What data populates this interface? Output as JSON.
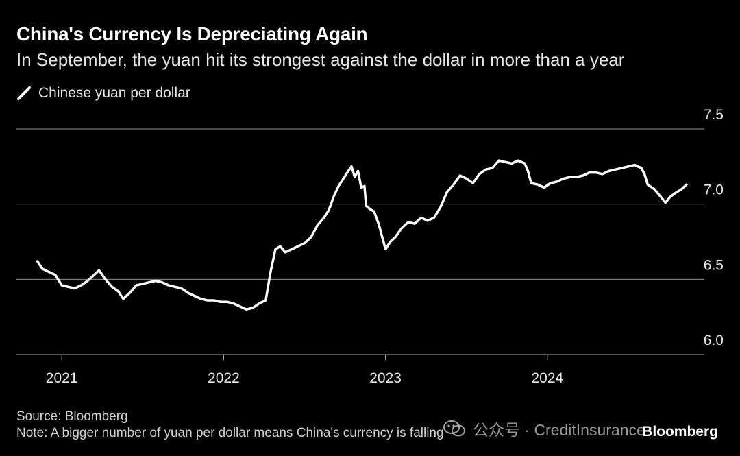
{
  "header": {
    "title": "China's Currency Is Depreciating Again",
    "subtitle": "In September, the yuan hit its strongest against the dollar in more than a year"
  },
  "legend": {
    "label": "Chinese yuan per dollar"
  },
  "footer": {
    "source": "Source: Bloomberg",
    "note": "Note: A bigger number of yuan per dollar means China's currency is falling"
  },
  "watermark": {
    "text": "公众号 · CreditInsurance",
    "icon": "wechat-icon"
  },
  "brand": {
    "name": "Bloomberg"
  },
  "colors": {
    "background": "#000000",
    "line": "#ffffff",
    "grid": "#8c8c8c",
    "text": "#ffffff"
  },
  "chart_data": {
    "type": "line",
    "title": "China's Currency Is Depreciating Again",
    "subtitle": "In September, the yuan hit its strongest against the dollar in more than a year",
    "xlabel": "",
    "ylabel": "",
    "ylim": [
      6.0,
      7.5
    ],
    "yticks": [
      "6.0",
      "6.5",
      "7.0",
      "7.5"
    ],
    "xticks": [
      "2021",
      "2022",
      "2023",
      "2024"
    ],
    "xlim": [
      2020.72,
      2024.97
    ],
    "grid": true,
    "legend_position": "top-left",
    "series": [
      {
        "name": "Chinese yuan per dollar",
        "points": [
          [
            2020.85,
            6.62
          ],
          [
            2020.88,
            6.57
          ],
          [
            2020.92,
            6.55
          ],
          [
            2020.96,
            6.53
          ],
          [
            2021.0,
            6.46
          ],
          [
            2021.04,
            6.45
          ],
          [
            2021.08,
            6.44
          ],
          [
            2021.12,
            6.46
          ],
          [
            2021.16,
            6.49
          ],
          [
            2021.2,
            6.53
          ],
          [
            2021.23,
            6.56
          ],
          [
            2021.27,
            6.5
          ],
          [
            2021.31,
            6.45
          ],
          [
            2021.35,
            6.42
          ],
          [
            2021.38,
            6.37
          ],
          [
            2021.42,
            6.41
          ],
          [
            2021.46,
            6.46
          ],
          [
            2021.5,
            6.47
          ],
          [
            2021.54,
            6.48
          ],
          [
            2021.58,
            6.49
          ],
          [
            2021.62,
            6.48
          ],
          [
            2021.66,
            6.46
          ],
          [
            2021.7,
            6.45
          ],
          [
            2021.74,
            6.44
          ],
          [
            2021.78,
            6.41
          ],
          [
            2021.82,
            6.39
          ],
          [
            2021.86,
            6.37
          ],
          [
            2021.9,
            6.36
          ],
          [
            2021.94,
            6.36
          ],
          [
            2021.98,
            6.35
          ],
          [
            2022.02,
            6.35
          ],
          [
            2022.06,
            6.34
          ],
          [
            2022.1,
            6.32
          ],
          [
            2022.14,
            6.3
          ],
          [
            2022.18,
            6.31
          ],
          [
            2022.22,
            6.34
          ],
          [
            2022.26,
            6.36
          ],
          [
            2022.29,
            6.55
          ],
          [
            2022.32,
            6.7
          ],
          [
            2022.35,
            6.72
          ],
          [
            2022.38,
            6.68
          ],
          [
            2022.42,
            6.7
          ],
          [
            2022.46,
            6.72
          ],
          [
            2022.5,
            6.74
          ],
          [
            2022.54,
            6.78
          ],
          [
            2022.58,
            6.86
          ],
          [
            2022.62,
            6.91
          ],
          [
            2022.65,
            6.96
          ],
          [
            2022.68,
            7.05
          ],
          [
            2022.71,
            7.12
          ],
          [
            2022.74,
            7.17
          ],
          [
            2022.77,
            7.22
          ],
          [
            2022.79,
            7.25
          ],
          [
            2022.81,
            7.18
          ],
          [
            2022.83,
            7.22
          ],
          [
            2022.85,
            7.11
          ],
          [
            2022.87,
            7.12
          ],
          [
            2022.88,
            6.99
          ],
          [
            2022.9,
            6.97
          ],
          [
            2022.93,
            6.95
          ],
          [
            2022.96,
            6.86
          ],
          [
            2023.0,
            6.7
          ],
          [
            2023.03,
            6.75
          ],
          [
            2023.06,
            6.78
          ],
          [
            2023.1,
            6.84
          ],
          [
            2023.14,
            6.88
          ],
          [
            2023.18,
            6.87
          ],
          [
            2023.22,
            6.91
          ],
          [
            2023.26,
            6.89
          ],
          [
            2023.3,
            6.91
          ],
          [
            2023.34,
            6.98
          ],
          [
            2023.38,
            7.08
          ],
          [
            2023.42,
            7.13
          ],
          [
            2023.46,
            7.19
          ],
          [
            2023.5,
            7.17
          ],
          [
            2023.54,
            7.14
          ],
          [
            2023.58,
            7.2
          ],
          [
            2023.62,
            7.23
          ],
          [
            2023.66,
            7.24
          ],
          [
            2023.7,
            7.29
          ],
          [
            2023.74,
            7.28
          ],
          [
            2023.78,
            7.27
          ],
          [
            2023.82,
            7.29
          ],
          [
            2023.86,
            7.27
          ],
          [
            2023.88,
            7.22
          ],
          [
            2023.9,
            7.14
          ],
          [
            2023.94,
            7.13
          ],
          [
            2023.98,
            7.11
          ],
          [
            2024.02,
            7.14
          ],
          [
            2024.06,
            7.15
          ],
          [
            2024.1,
            7.17
          ],
          [
            2024.14,
            7.18
          ],
          [
            2024.18,
            7.18
          ],
          [
            2024.22,
            7.19
          ],
          [
            2024.26,
            7.21
          ],
          [
            2024.3,
            7.21
          ],
          [
            2024.34,
            7.2
          ],
          [
            2024.38,
            7.22
          ],
          [
            2024.42,
            7.23
          ],
          [
            2024.46,
            7.24
          ],
          [
            2024.5,
            7.25
          ],
          [
            2024.54,
            7.26
          ],
          [
            2024.58,
            7.24
          ],
          [
            2024.6,
            7.2
          ],
          [
            2024.62,
            7.13
          ],
          [
            2024.66,
            7.1
          ],
          [
            2024.7,
            7.05
          ],
          [
            2024.73,
            7.01
          ],
          [
            2024.76,
            7.05
          ],
          [
            2024.8,
            7.08
          ],
          [
            2024.83,
            7.1
          ],
          [
            2024.86,
            7.13
          ]
        ]
      }
    ]
  }
}
